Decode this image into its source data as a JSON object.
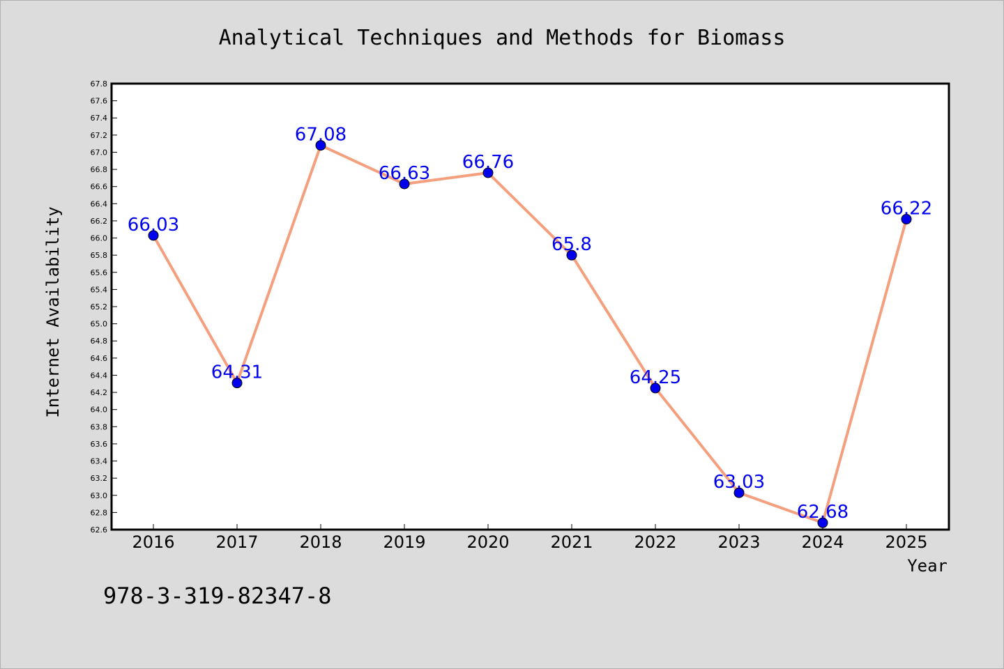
{
  "isbn": "978-3-319-82347-8",
  "colors": {
    "background": "#dcdcdc",
    "plot_background": "#ffffff",
    "line": "#f4a07e",
    "marker": "#0000ee",
    "label": "#0000ee"
  },
  "chart_data": {
    "type": "line",
    "title": "Analytical Techniques and Methods for Biomass",
    "xlabel": "Year",
    "ylabel": "Internet Availability",
    "x": [
      "2016",
      "2017",
      "2018",
      "2019",
      "2020",
      "2021",
      "2022",
      "2023",
      "2024",
      "2025"
    ],
    "values": [
      66.03,
      64.31,
      67.08,
      66.63,
      66.76,
      65.8,
      64.25,
      63.03,
      62.68,
      66.22
    ],
    "data_labels": [
      "66.03",
      "64.31",
      "67.08",
      "66.63",
      "66.76",
      "65.8",
      "64.25",
      "63.03",
      "62.68",
      "66.22"
    ],
    "ylim": [
      62.6,
      67.8
    ],
    "ytick_step": 0.2,
    "grid": false,
    "legend": "none"
  }
}
